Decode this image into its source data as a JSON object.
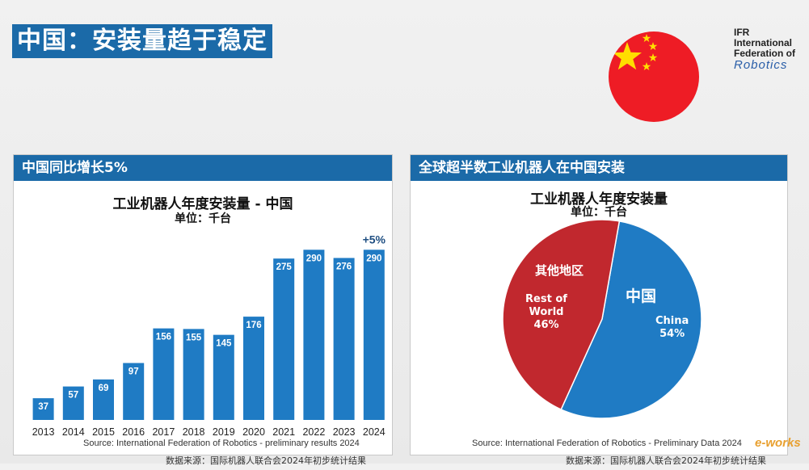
{
  "page_title": "中国：安装量趋于稳定",
  "logo": {
    "line1": "IFR",
    "line2": "International",
    "line3": "Federation of",
    "line4": "Robotics"
  },
  "flag": {
    "country": "China",
    "colors": {
      "field": "#ee1c25",
      "star": "#ffde00"
    }
  },
  "left_panel": {
    "header": "中国同比增长5%",
    "chart_title": "工业机器人年度安装量 - 中国",
    "chart_subtitle": "单位：千台",
    "growth_annotation": "+5%",
    "source": "Source: International Federation of Robotics - preliminary results 2024",
    "source_cn": "数据来源：国际机器人联合会2024年初步统计结果"
  },
  "right_panel": {
    "header": "全球超半数工业机器人在中国安装",
    "chart_title": "工业机器人年度安装量",
    "chart_subtitle": "单位：千台",
    "china_cn": "中国",
    "rest_cn": "其他地区",
    "source": "Source: International Federation of Robotics - Preliminary Data 2024",
    "source_cn": "数据来源：国际机器人联合会2024年初步统计结果"
  },
  "chart_data": [
    {
      "type": "bar",
      "title": "工业机器人年度安装量 - 中国",
      "subtitle": "单位：千台",
      "categories": [
        "2013",
        "2014",
        "2015",
        "2016",
        "2017",
        "2018",
        "2019",
        "2020",
        "2021",
        "2022",
        "2023",
        "2024"
      ],
      "values": [
        37,
        57,
        69,
        97,
        156,
        155,
        145,
        176,
        275,
        290,
        276,
        290
      ],
      "value_labels": [
        "37",
        "57",
        "69",
        "97",
        "156",
        "155",
        "145",
        "176",
        "275",
        "290",
        "276",
        "290"
      ],
      "ylim": [
        0,
        300
      ],
      "grid": false,
      "bar_color": "#1f7bc4",
      "annotations": [
        "+5%"
      ]
    },
    {
      "type": "pie",
      "title": "工业机器人年度安装量",
      "subtitle": "单位：千台",
      "slices": [
        {
          "label": "China",
          "label_cn": "中国",
          "value": 54,
          "value_label": "54%",
          "color": "#1f7bc4"
        },
        {
          "label": "Rest of World",
          "label_cn": "其他地区",
          "value": 46,
          "value_label": "46%",
          "color": "#c1282e"
        }
      ]
    }
  ],
  "watermark": "e-works"
}
